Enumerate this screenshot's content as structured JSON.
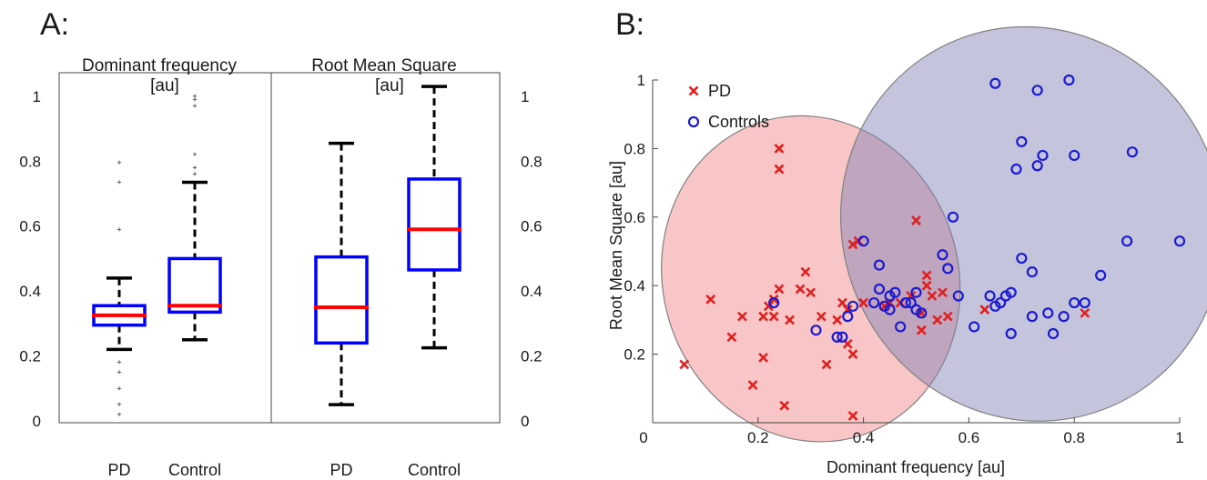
{
  "panel_labels": [
    "A:",
    "B:"
  ],
  "chart_data": [
    {
      "type": "box",
      "title": "Dominant frequency",
      "title_unit": "[au]",
      "categories": [
        "PD",
        "Control"
      ],
      "ylim": [
        0,
        1.05
      ],
      "yticks": [
        "0",
        "0.2",
        "0.4",
        "0.6",
        "0.8",
        "1"
      ],
      "boxes": [
        {
          "name": "PD",
          "whisker_low": 0.22,
          "q1": 0.295,
          "median": 0.325,
          "q3": 0.355,
          "whisker_high": 0.44,
          "outliers": [
            0.02,
            0.05,
            0.1,
            0.15,
            0.18,
            0.59,
            0.735,
            0.795
          ]
        },
        {
          "name": "Control",
          "whisker_low": 0.25,
          "q1": 0.335,
          "median": 0.355,
          "q3": 0.5,
          "whisker_high": 0.735,
          "outliers": [
            0.76,
            0.78,
            0.82,
            0.97,
            0.99,
            1.0
          ]
        }
      ],
      "colors": {
        "box": "#0000ff",
        "median": "#ff0000",
        "whisker": "#000000",
        "outlier": "#ff0000"
      }
    },
    {
      "type": "box",
      "title": "Root Mean Square",
      "title_unit": "[au]",
      "categories": [
        "PD",
        "Control"
      ],
      "ylim": [
        0,
        1.05
      ],
      "yticks": [
        "0",
        "0.2",
        "0.4",
        "0.6",
        "0.8",
        "1"
      ],
      "boxes": [
        {
          "name": "PD",
          "whisker_low": 0.05,
          "q1": 0.24,
          "median": 0.35,
          "q3": 0.505,
          "whisker_high": 0.855,
          "outliers": []
        },
        {
          "name": "Control",
          "whisker_low": 0.225,
          "q1": 0.465,
          "median": 0.59,
          "q3": 0.745,
          "whisker_high": 1.03,
          "outliers": []
        }
      ],
      "colors": {
        "box": "#0000ff",
        "median": "#ff0000",
        "whisker": "#000000"
      }
    },
    {
      "type": "scatter",
      "xlabel": "Dominant frequency [au]",
      "ylabel": "Root Mean Square [au]",
      "xlim": [
        0,
        1
      ],
      "ylim": [
        0,
        1
      ],
      "xticks": [
        "0",
        "0.2",
        "0.4",
        "0.6",
        "0.8",
        "1"
      ],
      "yticks": [
        "0.2",
        "0.4",
        "0.6",
        "0.8",
        "1"
      ],
      "legend_position": "top-left",
      "series": [
        {
          "name": "PD",
          "marker": "x",
          "color": "#e02020",
          "points": [
            [
              0.06,
              0.17
            ],
            [
              0.11,
              0.36
            ],
            [
              0.15,
              0.25
            ],
            [
              0.17,
              0.31
            ],
            [
              0.19,
              0.11
            ],
            [
              0.21,
              0.19
            ],
            [
              0.21,
              0.31
            ],
            [
              0.22,
              0.34
            ],
            [
              0.23,
              0.36
            ],
            [
              0.23,
              0.31
            ],
            [
              0.24,
              0.8
            ],
            [
              0.24,
              0.74
            ],
            [
              0.24,
              0.39
            ],
            [
              0.25,
              0.05
            ],
            [
              0.26,
              0.3
            ],
            [
              0.28,
              0.39
            ],
            [
              0.29,
              0.44
            ],
            [
              0.3,
              0.38
            ],
            [
              0.32,
              0.31
            ],
            [
              0.33,
              0.17
            ],
            [
              0.35,
              0.3
            ],
            [
              0.36,
              0.35
            ],
            [
              0.37,
              0.23
            ],
            [
              0.37,
              0.33
            ],
            [
              0.38,
              0.2
            ],
            [
              0.38,
              0.52
            ],
            [
              0.39,
              0.53
            ],
            [
              0.4,
              0.35
            ],
            [
              0.44,
              0.34
            ],
            [
              0.45,
              0.35
            ],
            [
              0.47,
              0.35
            ],
            [
              0.49,
              0.37
            ],
            [
              0.5,
              0.59
            ],
            [
              0.51,
              0.27
            ],
            [
              0.51,
              0.32
            ],
            [
              0.52,
              0.43
            ],
            [
              0.52,
              0.4
            ],
            [
              0.53,
              0.37
            ],
            [
              0.54,
              0.3
            ],
            [
              0.55,
              0.38
            ],
            [
              0.56,
              0.31
            ],
            [
              0.63,
              0.33
            ],
            [
              0.82,
              0.32
            ],
            [
              0.38,
              0.02
            ]
          ]
        },
        {
          "name": "Controls",
          "marker": "o",
          "color": "#1a1ad0",
          "points": [
            [
              0.23,
              0.35
            ],
            [
              0.31,
              0.27
            ],
            [
              0.35,
              0.25
            ],
            [
              0.36,
              0.25
            ],
            [
              0.37,
              0.31
            ],
            [
              0.38,
              0.34
            ],
            [
              0.4,
              0.53
            ],
            [
              0.42,
              0.35
            ],
            [
              0.43,
              0.46
            ],
            [
              0.43,
              0.39
            ],
            [
              0.44,
              0.34
            ],
            [
              0.45,
              0.33
            ],
            [
              0.45,
              0.37
            ],
            [
              0.46,
              0.38
            ],
            [
              0.47,
              0.28
            ],
            [
              0.48,
              0.35
            ],
            [
              0.49,
              0.35
            ],
            [
              0.5,
              0.38
            ],
            [
              0.5,
              0.33
            ],
            [
              0.51,
              0.32
            ],
            [
              0.55,
              0.49
            ],
            [
              0.56,
              0.45
            ],
            [
              0.57,
              0.6
            ],
            [
              0.58,
              0.37
            ],
            [
              0.61,
              0.28
            ],
            [
              0.64,
              0.37
            ],
            [
              0.65,
              0.34
            ],
            [
              0.66,
              0.35
            ],
            [
              0.67,
              0.37
            ],
            [
              0.68,
              0.26
            ],
            [
              0.68,
              0.38
            ],
            [
              0.65,
              0.99
            ],
            [
              0.69,
              0.74
            ],
            [
              0.7,
              0.82
            ],
            [
              0.7,
              0.48
            ],
            [
              0.72,
              0.31
            ],
            [
              0.72,
              0.44
            ],
            [
              0.73,
              0.97
            ],
            [
              0.73,
              0.75
            ],
            [
              0.74,
              0.78
            ],
            [
              0.75,
              0.32
            ],
            [
              0.76,
              0.26
            ],
            [
              0.78,
              0.31
            ],
            [
              0.79,
              1.0
            ],
            [
              0.8,
              0.78
            ],
            [
              0.8,
              0.35
            ],
            [
              0.82,
              0.35
            ],
            [
              0.85,
              0.43
            ],
            [
              0.9,
              0.53
            ],
            [
              0.91,
              0.79
            ],
            [
              1.0,
              0.53
            ]
          ]
        }
      ],
      "regions": [
        {
          "series": "PD",
          "color": "#f08080",
          "cx": 0.3,
          "cy": 0.42,
          "rx": 0.28,
          "ry": 0.48,
          "rotate": -18
        },
        {
          "series": "Controls",
          "color": "#7d7db4",
          "cx": 0.72,
          "cy": 0.58,
          "rx": 0.36,
          "ry": 0.58,
          "rotate": -25
        }
      ]
    }
  ]
}
